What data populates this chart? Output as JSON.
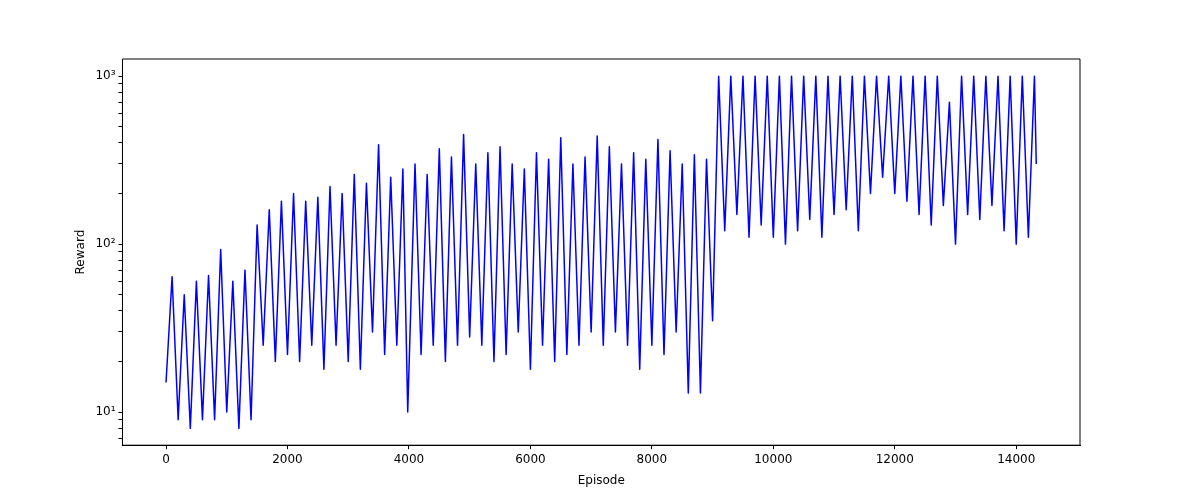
{
  "chart_data": {
    "type": "line",
    "xlabel": "Episode",
    "ylabel": "Reward",
    "log": "y",
    "marker": "none",
    "color": "#0000ff",
    "xlim": [
      -717,
      15050
    ],
    "ylim": [
      6.35,
      1265
    ],
    "xticks": [
      0,
      2000,
      4000,
      6000,
      8000,
      10000,
      12000,
      14000
    ],
    "yticks": [
      {
        "value": 7,
        "label": null
      },
      {
        "value": 8,
        "label": null
      },
      {
        "value": 9,
        "label": null
      },
      {
        "value": 10,
        "label": "10¹"
      },
      {
        "value": 20,
        "label": null
      },
      {
        "value": 30,
        "label": null
      },
      {
        "value": 40,
        "label": null
      },
      {
        "value": 50,
        "label": null
      },
      {
        "value": 60,
        "label": null
      },
      {
        "value": 70,
        "label": null
      },
      {
        "value": 80,
        "label": null
      },
      {
        "value": 90,
        "label": null
      },
      {
        "value": 100,
        "label": "10²"
      },
      {
        "value": 200,
        "label": null
      },
      {
        "value": 300,
        "label": null
      },
      {
        "value": 400,
        "label": null
      },
      {
        "value": 500,
        "label": null
      },
      {
        "value": 600,
        "label": null
      },
      {
        "value": 700,
        "label": null
      },
      {
        "value": 800,
        "label": null
      },
      {
        "value": 900,
        "label": null
      },
      {
        "value": 1000,
        "label": "10³"
      }
    ],
    "x": [
      0,
      100,
      200,
      300,
      400,
      500,
      600,
      700,
      800,
      900,
      1000,
      1100,
      1200,
      1300,
      1400,
      1500,
      1600,
      1700,
      1800,
      1900,
      2000,
      2100,
      2200,
      2300,
      2400,
      2500,
      2600,
      2700,
      2800,
      2900,
      3000,
      3100,
      3200,
      3300,
      3400,
      3500,
      3600,
      3700,
      3800,
      3900,
      3980,
      4100,
      4200,
      4300,
      4400,
      4500,
      4600,
      4700,
      4800,
      4900,
      5000,
      5100,
      5200,
      5300,
      5400,
      5500,
      5600,
      5700,
      5800,
      5900,
      6000,
      6100,
      6200,
      6300,
      6400,
      6500,
      6600,
      6700,
      6800,
      6900,
      7000,
      7100,
      7200,
      7300,
      7400,
      7500,
      7600,
      7700,
      7800,
      7900,
      8000,
      8100,
      8200,
      8300,
      8400,
      8500,
      8600,
      8700,
      8800,
      8900,
      9000,
      9100,
      9200,
      9300,
      9400,
      9500,
      9600,
      9700,
      9800,
      9900,
      10000,
      10100,
      10200,
      10300,
      10400,
      10500,
      10600,
      10700,
      10800,
      10900,
      11000,
      11100,
      11200,
      11300,
      11400,
      11500,
      11600,
      11700,
      11800,
      11900,
      12000,
      12100,
      12200,
      12300,
      12400,
      12500,
      12600,
      12700,
      12800,
      12900,
      13000,
      13100,
      13200,
      13300,
      13400,
      13500,
      13600,
      13700,
      13800,
      13900,
      14000,
      14100,
      14200,
      14300,
      14330
    ],
    "values": [
      15,
      64,
      9,
      50,
      8,
      60,
      9,
      65,
      9,
      93,
      10,
      60,
      8,
      70,
      9,
      130,
      25,
      160,
      20,
      180,
      22,
      200,
      20,
      180,
      25,
      190,
      18,
      220,
      25,
      200,
      20,
      260,
      18,
      230,
      30,
      390,
      22,
      250,
      25,
      280,
      10,
      300,
      22,
      260,
      25,
      370,
      20,
      330,
      25,
      450,
      28,
      300,
      25,
      350,
      20,
      380,
      22,
      300,
      30,
      280,
      18,
      350,
      25,
      320,
      20,
      430,
      22,
      300,
      25,
      330,
      30,
      440,
      25,
      380,
      30,
      300,
      25,
      350,
      18,
      320,
      25,
      420,
      22,
      360,
      30,
      300,
      13,
      340,
      13,
      320,
      35,
      1000,
      120,
      1000,
      150,
      1000,
      110,
      1000,
      130,
      1000,
      110,
      1000,
      100,
      1000,
      120,
      1000,
      140,
      1000,
      110,
      1000,
      150,
      1000,
      160,
      1000,
      120,
      1000,
      200,
      1000,
      250,
      1000,
      200,
      1000,
      180,
      1000,
      150,
      1000,
      130,
      1000,
      170,
      700,
      100,
      1000,
      150,
      1000,
      140,
      1000,
      170,
      1000,
      120,
      1000,
      100,
      1000,
      110,
      1000,
      300
    ]
  }
}
